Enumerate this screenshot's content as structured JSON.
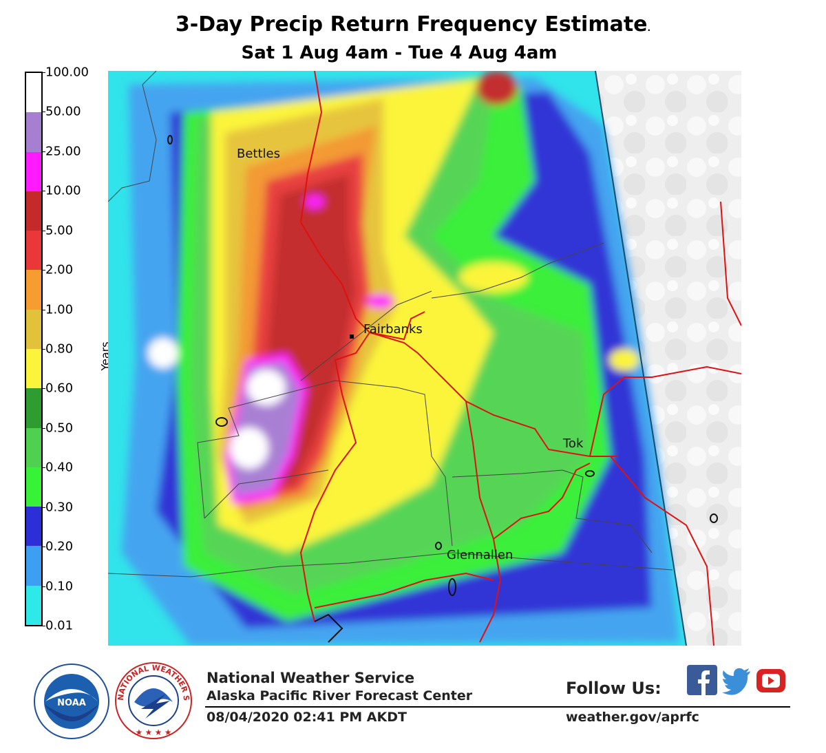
{
  "header": {
    "title": "3-Day Precip Return Frequency Estimate",
    "title_dot": ".",
    "subtitle": "Sat 1 Aug 4am  - Tue 4 Aug 4am"
  },
  "legend": {
    "label": "Years",
    "ticks": [
      "100.00",
      "50.00",
      "25.00",
      "10.00",
      "5.00",
      "2.00",
      "1.00",
      "0.80",
      "0.60",
      "0.50",
      "0.40",
      "0.30",
      "0.20",
      "0.10",
      "0.01"
    ],
    "colors": [
      "#ffffff",
      "#a77fd1",
      "#ff1aff",
      "#c42a2a",
      "#ea3838",
      "#f69c31",
      "#e2c13b",
      "#fbf43b",
      "#2f9c2f",
      "#4fd04f",
      "#37f237",
      "#2c2ed8",
      "#3c9ff2",
      "#2fe8e8"
    ]
  },
  "map": {
    "places": [
      {
        "name": "Bettles"
      },
      {
        "name": "Fairbanks"
      },
      {
        "name": "Tok"
      },
      {
        "name": "Glennallen"
      }
    ],
    "accent_colors": {
      "roads": "#e01010",
      "borders": "#333333",
      "coast": "#111111"
    }
  },
  "footer": {
    "org": "National Weather Service",
    "center": "Alaska Pacific River Forecast Center",
    "timestamp": "08/04/2020 02:41 PM AKDT",
    "follow": "Follow Us:",
    "url": "weather.gov/aprfc",
    "noaa_logo_text": "NOAA",
    "nws_logo_text": "NATIONAL WEATHER SERVICE",
    "social_icons": [
      "facebook-icon",
      "twitter-icon",
      "youtube-icon"
    ]
  }
}
